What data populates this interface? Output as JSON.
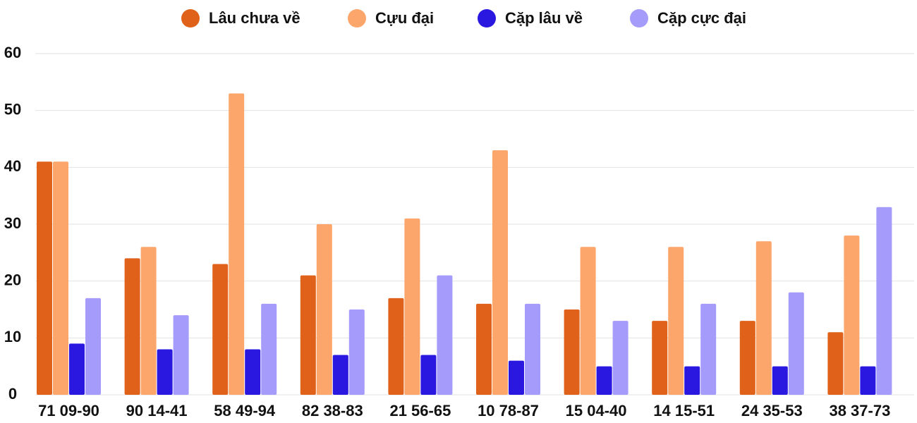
{
  "chart_data": {
    "type": "bar",
    "categories": [
      "71 09-90",
      "90 14-41",
      "58 49-94",
      "82 38-83",
      "21 56-65",
      "10 78-87",
      "15 04-40",
      "14 15-51",
      "24 35-53",
      "38 37-73"
    ],
    "series": [
      {
        "name": "Lâu chưa về",
        "color": "#e0621a",
        "values": [
          41,
          24,
          23,
          21,
          17,
          16,
          15,
          13,
          13,
          11
        ]
      },
      {
        "name": "Cựu đại",
        "color": "#fca66b",
        "values": [
          41,
          26,
          53,
          30,
          31,
          43,
          26,
          26,
          27,
          28
        ]
      },
      {
        "name": "Cặp lâu về",
        "color": "#2a17e0",
        "values": [
          9,
          8,
          8,
          7,
          7,
          6,
          5,
          5,
          5,
          5
        ]
      },
      {
        "name": "Cặp cực đại",
        "color": "#a59bfa",
        "values": [
          17,
          14,
          16,
          15,
          21,
          16,
          13,
          16,
          18,
          33
        ]
      }
    ],
    "ylim": [
      0,
      60
    ],
    "yticks": [
      0,
      10,
      20,
      30,
      40,
      50,
      60
    ],
    "grid": true,
    "legend": "top"
  }
}
